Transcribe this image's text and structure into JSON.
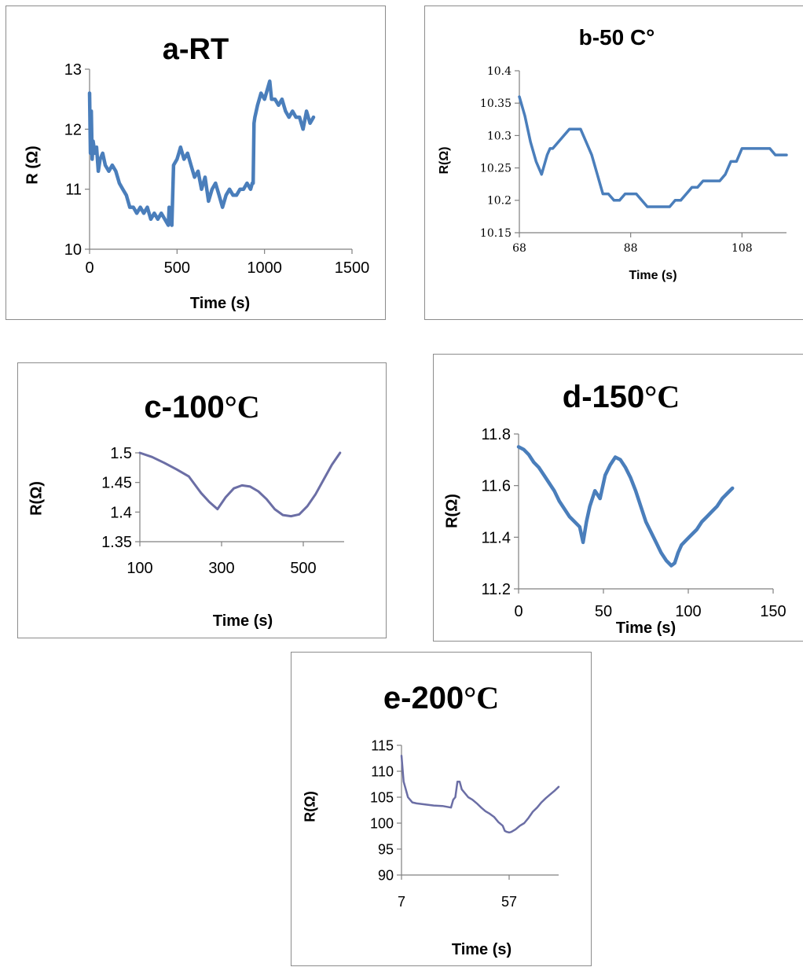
{
  "chart_data": [
    {
      "id": "a",
      "type": "line",
      "title": "a-RT",
      "xlabel": "Time (s)",
      "ylabel": "R (Ω)",
      "xlim": [
        0,
        1500
      ],
      "ylim": [
        10,
        13
      ],
      "xticks": [
        0,
        500,
        1000,
        1500
      ],
      "yticks": [
        10,
        11,
        12,
        13
      ],
      "color": "#4a7ebb",
      "grid": false,
      "series": [
        {
          "x": [
            0,
            5,
            10,
            15,
            20,
            30,
            40,
            50,
            60,
            75,
            90,
            110,
            130,
            150,
            170,
            190,
            210,
            230,
            250,
            270,
            290,
            310,
            330,
            350,
            370,
            390,
            410,
            430,
            450,
            455,
            460,
            470,
            480,
            500,
            510,
            520,
            540,
            560,
            580,
            600,
            620,
            640,
            660,
            680,
            700,
            720,
            740,
            760,
            780,
            800,
            820,
            840,
            860,
            880,
            900,
            920,
            930,
            935,
            940,
            945,
            960,
            980,
            1000,
            1020,
            1030,
            1040,
            1060,
            1080,
            1100,
            1120,
            1140,
            1160,
            1180,
            1200,
            1220,
            1240,
            1260,
            1280
          ],
          "y": [
            12.6,
            11.6,
            12.3,
            11.5,
            11.8,
            11.6,
            11.7,
            11.3,
            11.5,
            11.6,
            11.4,
            11.3,
            11.4,
            11.3,
            11.1,
            11.0,
            10.9,
            10.7,
            10.7,
            10.6,
            10.7,
            10.6,
            10.7,
            10.5,
            10.6,
            10.5,
            10.6,
            10.5,
            10.4,
            10.7,
            10.5,
            10.4,
            11.4,
            11.5,
            11.6,
            11.7,
            11.5,
            11.6,
            11.4,
            11.2,
            11.3,
            11.0,
            11.2,
            10.8,
            11.0,
            11.1,
            10.9,
            10.7,
            10.9,
            11.0,
            10.9,
            10.9,
            11.0,
            11.0,
            11.1,
            11.0,
            11.1,
            11.1,
            12.1,
            12.2,
            12.4,
            12.6,
            12.5,
            12.7,
            12.8,
            12.5,
            12.5,
            12.4,
            12.5,
            12.3,
            12.2,
            12.3,
            12.2,
            12.2,
            12.0,
            12.3,
            12.1,
            12.2
          ]
        }
      ]
    },
    {
      "id": "b",
      "type": "line",
      "title": "b-50 C°",
      "xlabel": "Time (s)",
      "ylabel": "R(Ω)",
      "xlim": [
        68,
        116
      ],
      "ylim": [
        10.15,
        10.4
      ],
      "xticks": [
        68,
        88,
        108
      ],
      "yticks": [
        10.15,
        10.2,
        10.25,
        10.3,
        10.35,
        10.4
      ],
      "color": "#4a7ebb",
      "grid": false,
      "series": [
        {
          "x": [
            68,
            69,
            70,
            71,
            72,
            73,
            73.5,
            74,
            75,
            76,
            77,
            78,
            79,
            80,
            81,
            82,
            83,
            84,
            85,
            86,
            87,
            88,
            89,
            90,
            91,
            92,
            93,
            94,
            95,
            96,
            97,
            98,
            99,
            100,
            101,
            102,
            103,
            104,
            105,
            106,
            107,
            108,
            109,
            110,
            111,
            112,
            113,
            114,
            115,
            116
          ],
          "y": [
            10.36,
            10.33,
            10.29,
            10.26,
            10.24,
            10.27,
            10.28,
            10.28,
            10.29,
            10.3,
            10.31,
            10.31,
            10.31,
            10.29,
            10.27,
            10.24,
            10.21,
            10.21,
            10.2,
            10.2,
            10.21,
            10.21,
            10.21,
            10.2,
            10.19,
            10.19,
            10.19,
            10.19,
            10.19,
            10.2,
            10.2,
            10.21,
            10.22,
            10.22,
            10.23,
            10.23,
            10.23,
            10.23,
            10.24,
            10.26,
            10.26,
            10.28,
            10.28,
            10.28,
            10.28,
            10.28,
            10.28,
            10.27,
            10.27,
            10.27
          ]
        }
      ]
    },
    {
      "id": "c",
      "type": "line",
      "title": "c-100",
      "title_unit": "°C",
      "xlabel": "Time (s)",
      "ylabel": "R(Ω)",
      "xlim": [
        100,
        600
      ],
      "ylim": [
        1.35,
        1.5
      ],
      "xticks": [
        100,
        300,
        500
      ],
      "yticks": [
        1.35,
        1.4,
        1.45,
        1.5
      ],
      "color": "#6b6ea5",
      "grid": false,
      "series": [
        {
          "x": [
            100,
            130,
            160,
            190,
            220,
            250,
            270,
            290,
            310,
            330,
            350,
            370,
            390,
            410,
            430,
            450,
            470,
            490,
            510,
            530,
            550,
            570,
            590
          ],
          "y": [
            1.5,
            1.493,
            1.483,
            1.472,
            1.46,
            1.432,
            1.417,
            1.405,
            1.425,
            1.44,
            1.445,
            1.443,
            1.435,
            1.422,
            1.405,
            1.395,
            1.393,
            1.396,
            1.41,
            1.43,
            1.455,
            1.48,
            1.5
          ]
        }
      ]
    },
    {
      "id": "d",
      "type": "line",
      "title": "d-150",
      "title_unit": "°C",
      "xlabel": "Time (s)",
      "ylabel": "R(Ω)",
      "xlim": [
        0,
        150
      ],
      "ylim": [
        11.2,
        11.8
      ],
      "xticks": [
        0,
        50,
        100,
        150
      ],
      "yticks": [
        11.2,
        11.4,
        11.6,
        11.8
      ],
      "color": "#4a7ebb",
      "grid": false,
      "series": [
        {
          "x": [
            0,
            3,
            6,
            9,
            12,
            15,
            18,
            21,
            24,
            27,
            30,
            33,
            36,
            38,
            40,
            42,
            45,
            48,
            51,
            54,
            57,
            60,
            63,
            66,
            69,
            72,
            75,
            78,
            81,
            84,
            87,
            90,
            92,
            94,
            96,
            99,
            102,
            105,
            108,
            111,
            114,
            117,
            120,
            123,
            126
          ],
          "y": [
            11.75,
            11.74,
            11.72,
            11.69,
            11.67,
            11.64,
            11.61,
            11.58,
            11.54,
            11.51,
            11.48,
            11.46,
            11.44,
            11.38,
            11.46,
            11.52,
            11.58,
            11.55,
            11.64,
            11.68,
            11.71,
            11.7,
            11.67,
            11.63,
            11.58,
            11.52,
            11.46,
            11.42,
            11.38,
            11.34,
            11.31,
            11.29,
            11.3,
            11.34,
            11.37,
            11.39,
            11.41,
            11.43,
            11.46,
            11.48,
            11.5,
            11.52,
            11.55,
            11.57,
            11.59
          ]
        }
      ]
    },
    {
      "id": "e",
      "type": "line",
      "title": "e-200",
      "title_unit": "°C",
      "xlabel": "Time (s)",
      "ylabel": "R(Ω)",
      "xlim": [
        7,
        80
      ],
      "ylim": [
        90,
        115
      ],
      "xticks": [
        7,
        57
      ],
      "yticks": [
        90,
        95,
        100,
        105,
        110,
        115
      ],
      "color": "#6b6ea5",
      "grid": false,
      "series": [
        {
          "x": [
            7,
            8,
            9,
            10,
            12,
            14,
            18,
            22,
            26,
            30,
            31,
            32,
            33,
            34,
            35,
            36,
            38,
            40,
            42,
            44,
            46,
            48,
            50,
            52,
            54,
            55,
            56,
            57,
            58,
            60,
            62,
            64,
            66,
            68,
            70,
            72,
            74,
            76,
            78,
            80
          ],
          "y": [
            113,
            108,
            106.5,
            105,
            104,
            103.8,
            103.6,
            103.4,
            103.3,
            103,
            104.5,
            105,
            108,
            108,
            106.5,
            106,
            105,
            104.5,
            103.8,
            103,
            102.3,
            101.8,
            101.2,
            100.2,
            99.5,
            98.5,
            98.3,
            98.2,
            98.3,
            98.8,
            99.5,
            100,
            101,
            102.2,
            103,
            104,
            104.8,
            105.5,
            106.2,
            107
          ]
        }
      ]
    }
  ]
}
